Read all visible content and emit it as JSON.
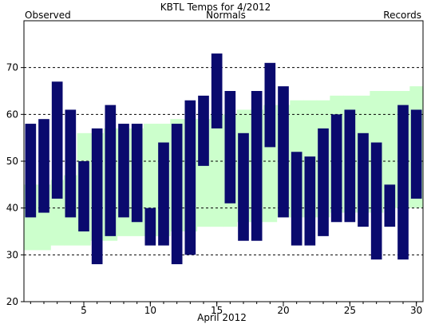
{
  "chart_data": {
    "type": "bar",
    "title": "KBTL Temps for 4/2012",
    "xlabel": "April 2012",
    "ylabel": "",
    "legend": {
      "observed": "Observed",
      "normals": "Normals",
      "records": "Records"
    },
    "colors": {
      "observed": "#0a0a6e",
      "normals_fill": "#ccffcc",
      "normals_text": "#006600",
      "records_text": "#cc99dd",
      "observed_text": "#000080",
      "gridline": "#000000",
      "background": "#ffffff"
    },
    "ylim": [
      20,
      80
    ],
    "xlim": [
      0.5,
      30.5
    ],
    "y_ticks": [
      20,
      30,
      40,
      50,
      60,
      70
    ],
    "x_ticks": [
      5,
      10,
      15,
      20,
      25,
      30
    ],
    "gridlines_y": [
      30,
      40,
      50,
      60,
      70
    ],
    "days": [
      1,
      2,
      3,
      4,
      5,
      6,
      7,
      8,
      9,
      10,
      11,
      12,
      13,
      14,
      15,
      16,
      17,
      18,
      19,
      20,
      21,
      22,
      23,
      24,
      25,
      26,
      27,
      28,
      29,
      30
    ],
    "observed_high": [
      58,
      59,
      67,
      61,
      50,
      57,
      62,
      58,
      58,
      40,
      54,
      58,
      63,
      64,
      73,
      65,
      56,
      65,
      71,
      66,
      52,
      51,
      57,
      60,
      61,
      56,
      54,
      45,
      62,
      61
    ],
    "observed_low": [
      38,
      39,
      42,
      38,
      35,
      28,
      34,
      38,
      37,
      32,
      32,
      28,
      30,
      49,
      57,
      41,
      33,
      33,
      53,
      38,
      32,
      32,
      34,
      37,
      37,
      36,
      29,
      36,
      29,
      42
    ],
    "normal_high": [
      45,
      45,
      46,
      47,
      56,
      56,
      57,
      57,
      57,
      58,
      58,
      59,
      59,
      59,
      60,
      60,
      61,
      61,
      62,
      62,
      63,
      63,
      63,
      64,
      64,
      64,
      65,
      65,
      65,
      66
    ],
    "normal_low": [
      31,
      31,
      32,
      32,
      32,
      33,
      33,
      34,
      34,
      34,
      34,
      35,
      35,
      36,
      36,
      36,
      37,
      37,
      37,
      38,
      38,
      38,
      38,
      39,
      39,
      39,
      39,
      40,
      40,
      40
    ]
  }
}
